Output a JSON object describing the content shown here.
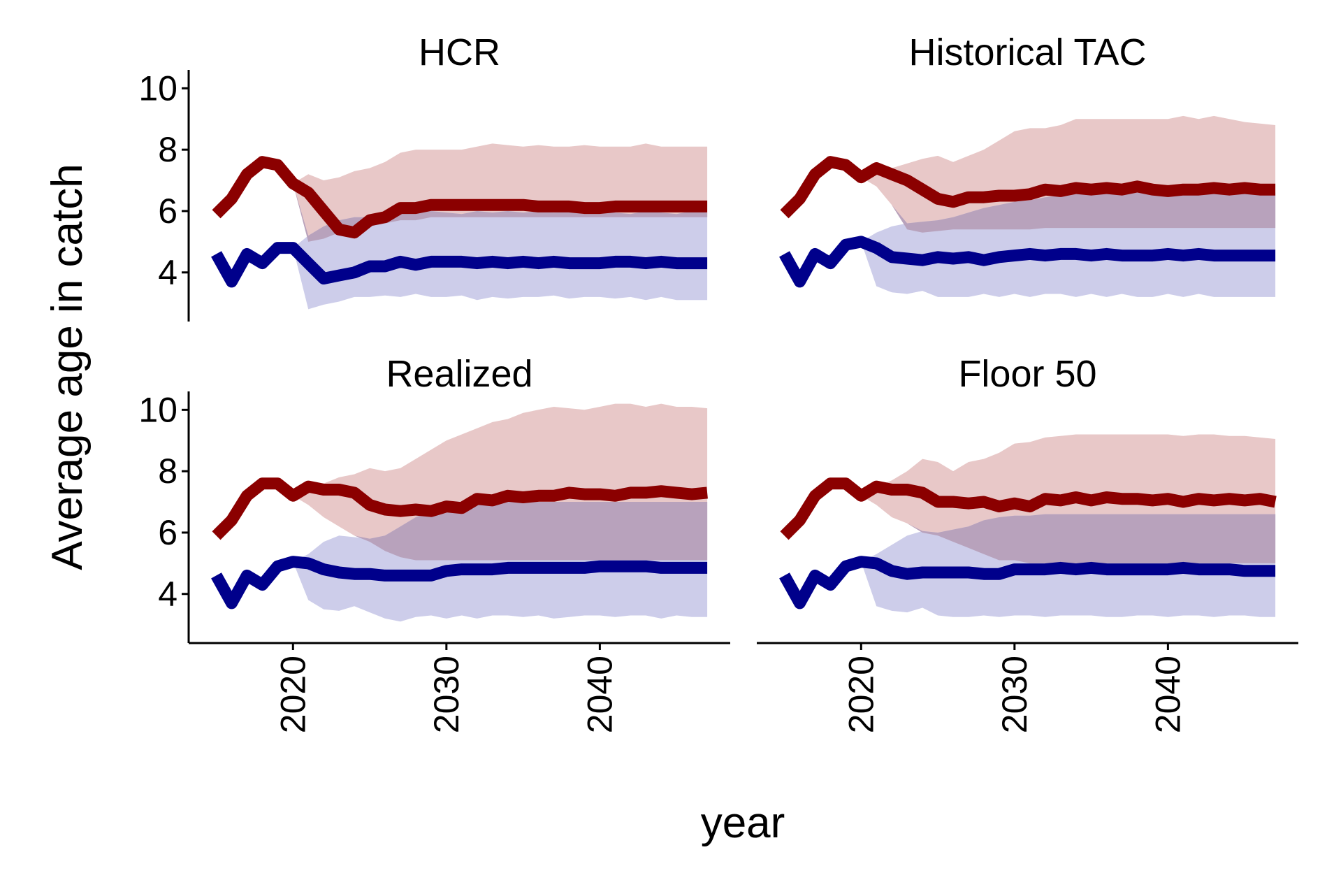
{
  "chart_data": {
    "type": "line",
    "ylabel": "Average age in catch",
    "xlabel": "year",
    "ylim": [
      2.4,
      10.6
    ],
    "xlim": [
      2013.2,
      2048.5
    ],
    "yticks": [
      4,
      6,
      8,
      10
    ],
    "xticks": [
      2020,
      2030,
      2040
    ],
    "grid": false,
    "legend": "none",
    "colors": {
      "red_line": "#8b0000",
      "blue_line": "#00008b",
      "red_band": "#e8c8c8",
      "blue_band": "#cdcdea",
      "overlap": "#b8a2bc",
      "overlap_dark": "#7a0a1c"
    },
    "x_history": [
      2015,
      2016,
      2017,
      2018,
      2019,
      2020
    ],
    "x_proj": [
      2020,
      2021,
      2022,
      2023,
      2024,
      2025,
      2026,
      2027,
      2028,
      2029,
      2030,
      2031,
      2032,
      2033,
      2034,
      2035,
      2036,
      2037,
      2038,
      2039,
      2040,
      2041,
      2042,
      2043,
      2044,
      2045,
      2046,
      2047
    ],
    "panels": [
      {
        "title": "HCR",
        "red_history": [
          5.9,
          6.4,
          7.2,
          7.6,
          7.5,
          6.9
        ],
        "red_median": [
          6.9,
          6.6,
          6.0,
          5.4,
          5.3,
          5.7,
          5.8,
          6.1,
          6.1,
          6.2,
          6.2,
          6.2,
          6.2,
          6.2,
          6.2,
          6.2,
          6.15,
          6.15,
          6.15,
          6.1,
          6.1,
          6.15,
          6.15,
          6.15,
          6.15,
          6.15,
          6.15,
          6.15
        ],
        "red_lower": [
          6.9,
          5.0,
          5.1,
          5.3,
          5.4,
          5.5,
          5.6,
          5.7,
          5.7,
          5.8,
          5.8,
          5.8,
          5.8,
          5.8,
          5.8,
          5.8,
          5.8,
          5.8,
          5.8,
          5.8,
          5.8,
          5.8,
          5.8,
          5.8,
          5.8,
          5.8,
          5.8,
          5.8
        ],
        "red_upper": [
          6.9,
          7.2,
          7.0,
          7.1,
          7.3,
          7.4,
          7.6,
          7.9,
          8.0,
          8.0,
          8.0,
          8.0,
          8.1,
          8.2,
          8.15,
          8.1,
          8.15,
          8.1,
          8.1,
          8.15,
          8.1,
          8.1,
          8.1,
          8.2,
          8.1,
          8.1,
          8.1,
          8.1
        ],
        "blue_history": [
          4.6,
          3.7,
          4.6,
          4.3,
          4.8,
          4.8
        ],
        "blue_median": [
          4.8,
          4.3,
          3.8,
          3.9,
          4.0,
          4.2,
          4.2,
          4.35,
          4.25,
          4.35,
          4.35,
          4.35,
          4.3,
          4.35,
          4.3,
          4.35,
          4.3,
          4.35,
          4.3,
          4.3,
          4.3,
          4.35,
          4.35,
          4.3,
          4.35,
          4.3,
          4.3,
          4.3
        ],
        "blue_lower": [
          4.8,
          2.8,
          2.95,
          3.05,
          3.2,
          3.2,
          3.25,
          3.2,
          3.3,
          3.2,
          3.2,
          3.25,
          3.1,
          3.2,
          3.15,
          3.2,
          3.2,
          3.25,
          3.15,
          3.2,
          3.2,
          3.15,
          3.2,
          3.1,
          3.2,
          3.1,
          3.1,
          3.1
        ],
        "blue_upper": [
          4.8,
          5.2,
          5.5,
          5.7,
          5.8,
          5.8,
          5.9,
          5.9,
          5.95,
          6.0,
          5.95,
          5.9,
          6.0,
          5.95,
          6.0,
          5.95,
          6.0,
          5.95,
          6.0,
          5.95,
          6.0,
          5.95,
          5.9,
          6.0,
          5.95,
          5.9,
          6.0,
          5.95
        ]
      },
      {
        "title": "Historical TAC",
        "red_history": [
          5.9,
          6.4,
          7.2,
          7.6,
          7.5,
          7.1
        ],
        "red_median": [
          7.1,
          7.4,
          7.2,
          7.0,
          6.7,
          6.4,
          6.3,
          6.45,
          6.45,
          6.5,
          6.5,
          6.55,
          6.7,
          6.65,
          6.75,
          6.7,
          6.75,
          6.7,
          6.8,
          6.7,
          6.65,
          6.7,
          6.7,
          6.75,
          6.7,
          6.75,
          6.7,
          6.7
        ],
        "red_lower": [
          7.1,
          6.8,
          6.2,
          5.4,
          5.3,
          5.35,
          5.4,
          5.4,
          5.4,
          5.4,
          5.4,
          5.4,
          5.45,
          5.45,
          5.45,
          5.45,
          5.45,
          5.45,
          5.45,
          5.45,
          5.45,
          5.45,
          5.45,
          5.45,
          5.45,
          5.45,
          5.45,
          5.45
        ],
        "red_upper": [
          7.1,
          7.5,
          7.4,
          7.55,
          7.7,
          7.8,
          7.6,
          7.8,
          8.0,
          8.3,
          8.6,
          8.7,
          8.7,
          8.8,
          9.0,
          9.0,
          9.0,
          9.0,
          9.0,
          9.0,
          9.0,
          9.1,
          9.0,
          9.1,
          9.0,
          8.9,
          8.85,
          8.8
        ],
        "blue_history": [
          4.6,
          3.7,
          4.6,
          4.3,
          4.9,
          5.0
        ],
        "blue_median": [
          5.0,
          4.8,
          4.5,
          4.45,
          4.4,
          4.5,
          4.45,
          4.5,
          4.4,
          4.5,
          4.55,
          4.6,
          4.55,
          4.6,
          4.6,
          4.55,
          4.6,
          4.55,
          4.55,
          4.55,
          4.6,
          4.55,
          4.6,
          4.55,
          4.55,
          4.55,
          4.55,
          4.55
        ],
        "blue_lower": [
          5.0,
          3.55,
          3.35,
          3.3,
          3.4,
          3.2,
          3.2,
          3.2,
          3.3,
          3.2,
          3.3,
          3.2,
          3.3,
          3.3,
          3.2,
          3.3,
          3.2,
          3.3,
          3.2,
          3.2,
          3.3,
          3.2,
          3.3,
          3.2,
          3.2,
          3.2,
          3.2,
          3.2
        ],
        "blue_upper": [
          5.0,
          5.3,
          5.5,
          5.6,
          5.65,
          5.7,
          5.8,
          5.95,
          6.1,
          6.2,
          6.3,
          6.35,
          6.45,
          6.5,
          6.55,
          6.6,
          6.6,
          6.65,
          6.6,
          6.6,
          6.6,
          6.6,
          6.65,
          6.6,
          6.6,
          6.65,
          6.6,
          6.6
        ]
      },
      {
        "title": "Realized",
        "red_history": [
          5.9,
          6.4,
          7.2,
          7.6,
          7.6,
          7.2
        ],
        "red_median": [
          7.2,
          7.5,
          7.4,
          7.4,
          7.3,
          6.9,
          6.75,
          6.7,
          6.75,
          6.7,
          6.85,
          6.8,
          7.1,
          7.05,
          7.2,
          7.15,
          7.2,
          7.2,
          7.3,
          7.25,
          7.25,
          7.2,
          7.3,
          7.3,
          7.35,
          7.3,
          7.25,
          7.3
        ],
        "red_lower": [
          7.2,
          6.9,
          6.5,
          6.2,
          5.9,
          5.7,
          5.4,
          5.2,
          5.1,
          5.1,
          5.1,
          5.1,
          5.1,
          5.1,
          5.1,
          5.1,
          5.1,
          5.1,
          5.1,
          5.1,
          5.1,
          5.1,
          5.1,
          5.1,
          5.1,
          5.1,
          5.1,
          5.1
        ],
        "red_upper": [
          7.2,
          7.6,
          7.6,
          7.8,
          7.9,
          8.1,
          8.0,
          8.1,
          8.4,
          8.7,
          9.0,
          9.2,
          9.4,
          9.6,
          9.7,
          9.9,
          10.0,
          10.1,
          10.05,
          10.0,
          10.1,
          10.2,
          10.2,
          10.1,
          10.2,
          10.1,
          10.1,
          10.05
        ],
        "blue_history": [
          4.6,
          3.7,
          4.6,
          4.3,
          4.9,
          5.05
        ],
        "blue_median": [
          5.05,
          5.0,
          4.8,
          4.7,
          4.65,
          4.65,
          4.6,
          4.6,
          4.6,
          4.6,
          4.75,
          4.8,
          4.8,
          4.8,
          4.85,
          4.85,
          4.85,
          4.85,
          4.85,
          4.85,
          4.9,
          4.9,
          4.9,
          4.9,
          4.85,
          4.85,
          4.85,
          4.85
        ],
        "blue_lower": [
          5.05,
          3.8,
          3.5,
          3.45,
          3.6,
          3.4,
          3.2,
          3.1,
          3.25,
          3.3,
          3.2,
          3.3,
          3.2,
          3.3,
          3.3,
          3.25,
          3.3,
          3.2,
          3.25,
          3.3,
          3.3,
          3.25,
          3.3,
          3.3,
          3.2,
          3.3,
          3.25,
          3.25
        ],
        "blue_upper": [
          5.05,
          5.3,
          5.7,
          5.9,
          5.85,
          5.8,
          5.9,
          6.2,
          6.5,
          6.7,
          6.9,
          7.0,
          7.0,
          7.0,
          7.0,
          7.0,
          7.0,
          7.0,
          7.0,
          7.0,
          7.0,
          7.0,
          7.0,
          7.0,
          7.0,
          7.0,
          7.0,
          7.0
        ]
      },
      {
        "title": "Floor 50",
        "red_history": [
          5.9,
          6.4,
          7.2,
          7.6,
          7.6,
          7.2
        ],
        "red_median": [
          7.2,
          7.5,
          7.4,
          7.4,
          7.3,
          7.0,
          7.0,
          6.95,
          7.0,
          6.85,
          6.95,
          6.85,
          7.1,
          7.05,
          7.15,
          7.05,
          7.15,
          7.1,
          7.1,
          7.05,
          7.1,
          7.0,
          7.1,
          7.05,
          7.1,
          7.05,
          7.1,
          7.0
        ],
        "red_lower": [
          7.2,
          6.9,
          6.5,
          6.3,
          6.0,
          5.9,
          5.7,
          5.5,
          5.3,
          5.1,
          5.1,
          5.0,
          5.0,
          5.0,
          5.0,
          5.0,
          5.0,
          5.0,
          5.0,
          5.0,
          5.0,
          5.0,
          5.0,
          5.0,
          5.0,
          5.0,
          5.0,
          5.0
        ],
        "red_upper": [
          7.2,
          7.5,
          7.7,
          8.0,
          8.4,
          8.3,
          8.0,
          8.3,
          8.4,
          8.6,
          8.9,
          8.95,
          9.1,
          9.15,
          9.2,
          9.2,
          9.2,
          9.2,
          9.2,
          9.2,
          9.2,
          9.15,
          9.2,
          9.2,
          9.15,
          9.15,
          9.1,
          9.05
        ],
        "blue_history": [
          4.6,
          3.7,
          4.6,
          4.3,
          4.9,
          5.05
        ],
        "blue_median": [
          5.05,
          5.0,
          4.75,
          4.65,
          4.7,
          4.7,
          4.7,
          4.7,
          4.65,
          4.65,
          4.8,
          4.8,
          4.8,
          4.85,
          4.8,
          4.85,
          4.8,
          4.8,
          4.8,
          4.8,
          4.8,
          4.85,
          4.8,
          4.8,
          4.8,
          4.75,
          4.75,
          4.75
        ],
        "blue_lower": [
          5.05,
          3.6,
          3.45,
          3.4,
          3.55,
          3.3,
          3.25,
          3.25,
          3.3,
          3.25,
          3.3,
          3.3,
          3.25,
          3.3,
          3.3,
          3.3,
          3.25,
          3.25,
          3.3,
          3.3,
          3.25,
          3.3,
          3.3,
          3.25,
          3.3,
          3.3,
          3.25,
          3.25
        ],
        "blue_upper": [
          5.05,
          5.3,
          5.6,
          5.9,
          6.05,
          6.0,
          6.1,
          6.2,
          6.4,
          6.5,
          6.55,
          6.55,
          6.6,
          6.6,
          6.6,
          6.6,
          6.6,
          6.6,
          6.6,
          6.6,
          6.6,
          6.6,
          6.6,
          6.6,
          6.6,
          6.6,
          6.6,
          6.6
        ]
      }
    ]
  }
}
